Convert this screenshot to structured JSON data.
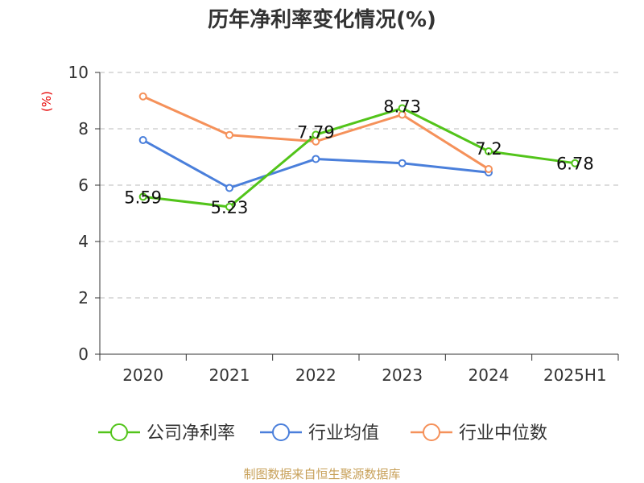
{
  "chart_data": {
    "type": "line",
    "title": "历年净利率变化情况(%)",
    "ylabel": "(%)",
    "categories": [
      "2020",
      "2021",
      "2022",
      "2023",
      "2024",
      "2025H1"
    ],
    "ylim": [
      0,
      10
    ],
    "yticks": [
      0,
      2,
      4,
      6,
      8,
      10
    ],
    "grid": true,
    "legend_position": "bottom",
    "series": [
      {
        "name": "公司净利率",
        "color": "#52c41a",
        "values": [
          5.59,
          5.23,
          7.79,
          8.73,
          7.2,
          6.78
        ],
        "labels": [
          "5.59",
          "5.23",
          "7.79",
          "8.73",
          "7.2",
          "6.78"
        ]
      },
      {
        "name": "行业均值",
        "color": "#4a7fdb",
        "values": [
          7.6,
          5.9,
          6.93,
          6.78,
          6.45,
          null
        ],
        "labels": []
      },
      {
        "name": "行业中位数",
        "color": "#f5915a",
        "values": [
          9.15,
          7.78,
          7.55,
          8.5,
          6.57,
          null
        ],
        "labels": []
      }
    ]
  },
  "source_text": "制图数据来自恒生聚源数据库"
}
